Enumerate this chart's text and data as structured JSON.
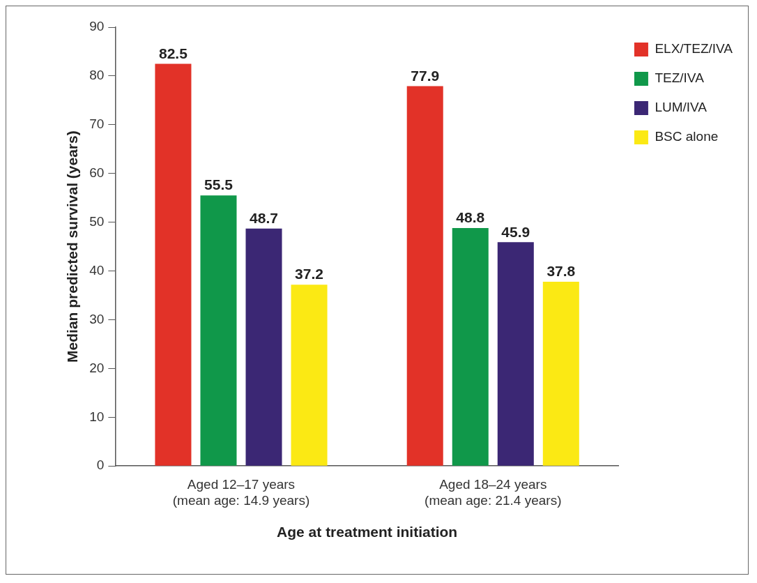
{
  "chart_data": {
    "type": "bar",
    "xlabel": "Age at treatment initiation",
    "ylabel": "Median predicted survival (years)",
    "categories": [
      "Aged 12–17 years\n(mean age: 14.9 years)",
      "Aged 18–24 years\n(mean age: 21.4 years)"
    ],
    "series": [
      {
        "name": "ELX/TEZ/IVA",
        "color": "#e23228",
        "values": [
          82.5,
          77.9
        ]
      },
      {
        "name": "TEZ/IVA",
        "color": "#10984a",
        "values": [
          55.5,
          48.8
        ]
      },
      {
        "name": "LUM/IVA",
        "color": "#3b2774",
        "values": [
          48.7,
          45.9
        ]
      },
      {
        "name": "BSC alone",
        "color": "#fbe914",
        "values": [
          37.2,
          37.8
        ]
      }
    ],
    "ylim": [
      0,
      90
    ],
    "yticks": [
      0,
      10,
      20,
      30,
      40,
      50,
      60,
      70,
      80,
      90
    ],
    "grid": false,
    "legend": "top right",
    "data_labels": true
  }
}
